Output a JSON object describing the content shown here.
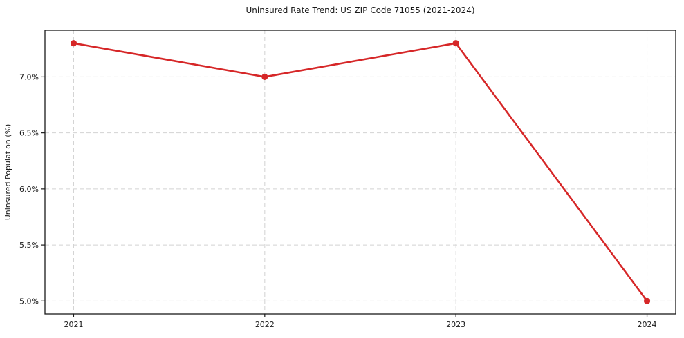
{
  "chart_data": {
    "type": "line",
    "title": "Uninsured Rate Trend: US ZIP Code 71055 (2021-2024)",
    "ylabel": "Uninsured Population (%)",
    "xlabel": "",
    "x": [
      2021,
      2022,
      2023,
      2024
    ],
    "values": [
      7.3,
      7.0,
      7.3,
      5.0
    ],
    "xtick_labels": [
      "2021",
      "2022",
      "2023",
      "2024"
    ],
    "yticks": [
      5.0,
      5.5,
      6.0,
      6.5,
      7.0
    ],
    "ytick_labels": [
      "5.0%",
      "5.5%",
      "6.0%",
      "6.5%",
      "7.0%"
    ],
    "xlim": [
      2020.85,
      2024.15
    ],
    "ylim": [
      4.885,
      7.415
    ],
    "grid": true,
    "grid_style": "dashed",
    "legend": "none",
    "colors": {
      "line": "#d62728",
      "marker": "#d62728",
      "grid": "#d2d2d2",
      "spine": "#1a1a1a",
      "tick_text": "#1a1a1a",
      "background": "#ffffff"
    }
  }
}
